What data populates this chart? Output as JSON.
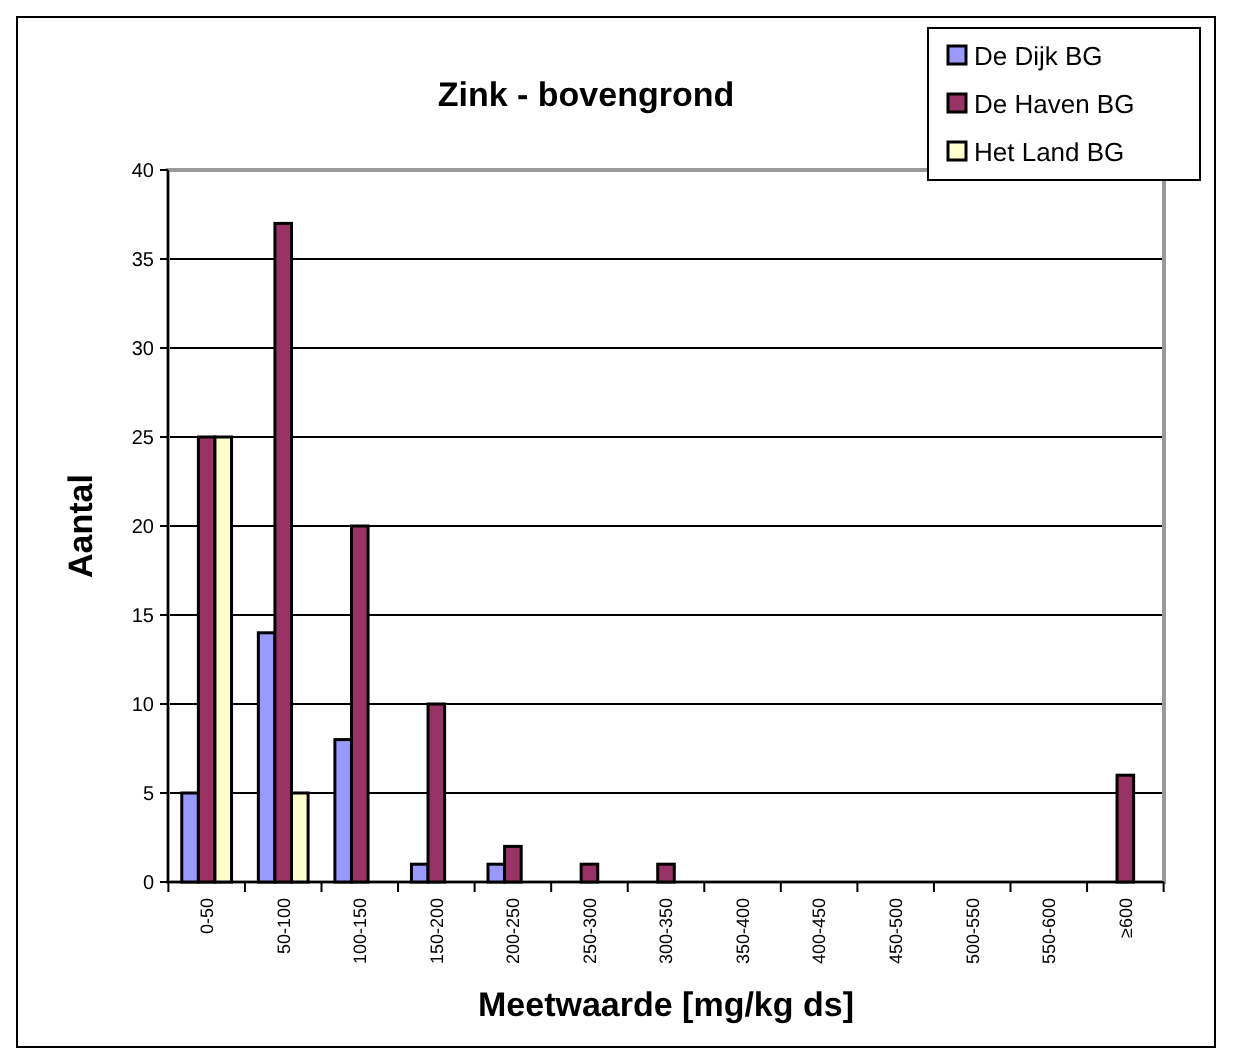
{
  "chart_data": {
    "type": "bar",
    "title": "Zink - bovengrond",
    "xlabel": "Meetwaarde [mg/kg ds]",
    "ylabel": "Aantal",
    "categories": [
      "0-50",
      "50-100",
      "100-150",
      "150-200",
      "200-250",
      "250-300",
      "300-350",
      "350-400",
      "400-450",
      "450-500",
      "500-550",
      "550-600",
      "≥600"
    ],
    "series": [
      {
        "name": "De Dijk BG",
        "color": "#9999ff",
        "values": [
          5,
          14,
          8,
          1,
          1,
          0,
          0,
          0,
          0,
          0,
          0,
          0,
          0
        ]
      },
      {
        "name": "De Haven BG",
        "color": "#993366",
        "values": [
          25,
          37,
          20,
          10,
          2,
          1,
          1,
          0,
          0,
          0,
          0,
          0,
          6
        ]
      },
      {
        "name": "Het Land BG",
        "color": "#ffffcc",
        "values": [
          25,
          5,
          0,
          0,
          0,
          0,
          0,
          0,
          0,
          0,
          0,
          0,
          0
        ]
      }
    ],
    "ylim": [
      0,
      40
    ],
    "yticks": [
      0,
      5,
      10,
      15,
      20,
      25,
      30,
      35,
      40
    ],
    "grid": "y",
    "legend": "top right"
  }
}
